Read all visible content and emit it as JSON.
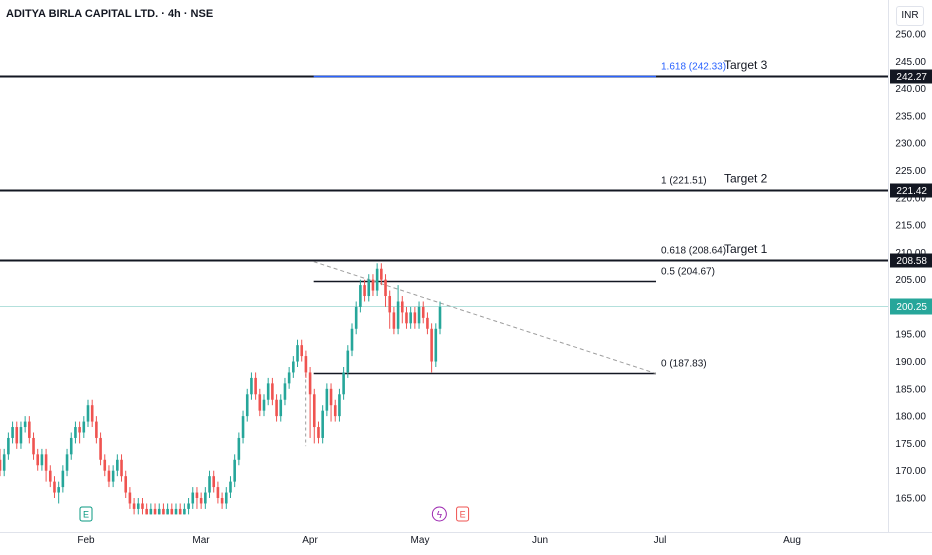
{
  "header": {
    "symbol_title": "ADITYA BIRLA CAPITAL LTD. · 4h · NSE",
    "currency": "INR"
  },
  "colors": {
    "up": "#26a69a",
    "down": "#ef5350",
    "level_line": "#131722",
    "fib_ext": "#2962ff",
    "current_price": "#26a69a",
    "trend_line": "#9e9e9e",
    "axis_text": "#131722"
  },
  "chart_data": {
    "type": "candlestick",
    "timeframe": "4h",
    "xlabels": [
      "Feb",
      "Mar",
      "Apr",
      "May",
      "Jun",
      "Jul",
      "Aug"
    ],
    "ylim": [
      162,
      253
    ],
    "yticks": [
      165,
      170,
      175,
      180,
      185,
      190,
      195,
      200,
      205,
      210,
      215,
      220,
      225,
      230,
      235,
      240,
      245,
      250
    ],
    "current_price": "200.25",
    "price_labels": [
      "242.27",
      "221.42",
      "208.58"
    ],
    "horizontal_levels": [
      242.27,
      221.42,
      208.58
    ],
    "fib_levels": [
      {
        "label": "1.618 (242.33)",
        "value": 242.33
      },
      {
        "label": "1 (221.51)",
        "value": 221.51
      },
      {
        "label": "0.618 (208.64)",
        "value": 208.64
      },
      {
        "label": "0.5 (204.67)",
        "value": 204.67
      },
      {
        "label": "0 (187.83)",
        "value": 187.83
      }
    ],
    "targets": [
      {
        "label": "Target 3",
        "value": 242.33
      },
      {
        "label": "Target 2",
        "value": 221.51
      },
      {
        "label": "Target 1",
        "value": 208.64
      }
    ],
    "trendline": {
      "start_price": 208.3,
      "end_price": 187.8,
      "start_date": "2024-04-02",
      "end_date": "2024-06-30"
    },
    "events": [
      {
        "type": "earnings",
        "icon": "E",
        "date": "2024-02-01"
      },
      {
        "type": "dividend",
        "icon": "ϟ",
        "date": "2024-05-06"
      },
      {
        "type": "earnings",
        "icon": "E",
        "date": "2024-05-12"
      }
    ],
    "candles": [
      [
        172,
        170,
        174,
        169
      ],
      [
        170,
        173,
        174,
        169
      ],
      [
        173,
        176,
        177,
        172
      ],
      [
        176,
        178,
        179,
        175
      ],
      [
        178,
        175,
        179,
        174
      ],
      [
        175,
        178,
        179,
        174
      ],
      [
        178,
        179,
        180,
        177
      ],
      [
        179,
        176,
        180,
        175
      ],
      [
        176,
        173,
        177,
        172
      ],
      [
        173,
        171,
        174,
        170
      ],
      [
        171,
        173,
        174,
        170
      ],
      [
        173,
        170,
        174,
        168
      ],
      [
        170,
        168,
        171,
        167
      ],
      [
        168,
        166,
        169,
        165
      ],
      [
        166,
        167,
        168,
        164
      ],
      [
        167,
        170,
        171,
        166
      ],
      [
        170,
        173,
        174,
        169
      ],
      [
        173,
        176,
        177,
        172
      ],
      [
        176,
        178,
        179,
        175
      ],
      [
        178,
        177,
        179,
        175
      ],
      [
        177,
        179,
        180,
        176
      ],
      [
        179,
        182,
        183,
        178
      ],
      [
        182,
        179,
        183,
        178
      ],
      [
        179,
        176,
        180,
        175
      ],
      [
        176,
        172,
        177,
        171
      ],
      [
        172,
        170,
        173,
        169
      ],
      [
        170,
        168,
        171,
        167
      ],
      [
        168,
        170,
        171,
        167
      ],
      [
        170,
        172,
        173,
        169
      ],
      [
        172,
        169,
        173,
        168
      ],
      [
        169,
        166,
        170,
        165
      ],
      [
        166,
        164,
        167,
        163
      ],
      [
        164,
        163,
        165,
        162
      ],
      [
        163,
        164,
        165,
        162
      ],
      [
        164,
        163,
        165,
        162
      ],
      [
        163,
        162,
        164,
        162
      ],
      [
        162,
        163,
        164,
        162
      ],
      [
        163,
        162,
        164,
        162
      ],
      [
        162,
        163,
        164,
        162
      ],
      [
        163,
        162,
        164,
        162
      ],
      [
        162,
        163,
        164,
        162
      ],
      [
        163,
        162,
        164,
        162
      ],
      [
        162,
        163,
        164,
        162
      ],
      [
        163,
        162,
        164,
        162
      ],
      [
        162,
        163,
        164,
        162
      ],
      [
        163,
        164,
        165,
        162
      ],
      [
        164,
        166,
        167,
        163
      ],
      [
        166,
        165,
        167,
        163
      ],
      [
        165,
        164,
        166,
        163
      ],
      [
        164,
        166,
        167,
        163
      ],
      [
        166,
        169,
        170,
        165
      ],
      [
        169,
        167,
        170,
        166
      ],
      [
        167,
        165,
        168,
        164
      ],
      [
        165,
        164,
        166,
        163
      ],
      [
        164,
        166,
        167,
        163
      ],
      [
        166,
        168,
        169,
        165
      ],
      [
        168,
        172,
        173,
        167
      ],
      [
        172,
        176,
        177,
        171
      ],
      [
        176,
        180,
        181,
        175
      ],
      [
        180,
        184,
        185,
        179
      ],
      [
        184,
        187,
        188,
        183
      ],
      [
        187,
        184,
        188,
        183
      ],
      [
        184,
        181,
        185,
        180
      ],
      [
        181,
        183,
        184,
        180
      ],
      [
        183,
        186,
        187,
        182
      ],
      [
        186,
        183,
        187,
        182
      ],
      [
        183,
        180,
        184,
        179
      ],
      [
        180,
        183,
        184,
        179
      ],
      [
        183,
        186,
        187,
        182
      ],
      [
        186,
        188,
        189,
        185
      ],
      [
        188,
        190,
        191,
        187
      ],
      [
        190,
        193,
        194,
        189
      ],
      [
        193,
        191,
        194,
        190
      ],
      [
        191,
        188,
        192,
        187
      ],
      [
        188,
        184,
        189,
        176
      ],
      [
        184,
        178,
        185,
        175
      ],
      [
        178,
        176,
        179,
        175
      ],
      [
        176,
        181,
        182,
        175
      ],
      [
        181,
        185,
        186,
        180
      ],
      [
        185,
        182,
        186,
        179
      ],
      [
        182,
        180,
        183,
        179
      ],
      [
        180,
        184,
        185,
        179
      ],
      [
        184,
        188,
        189,
        183
      ],
      [
        188,
        192,
        193,
        187
      ],
      [
        192,
        196,
        197,
        191
      ],
      [
        196,
        200,
        201,
        195
      ],
      [
        200,
        204,
        205,
        199
      ],
      [
        204,
        202,
        205,
        201
      ],
      [
        202,
        205,
        206,
        201
      ],
      [
        205,
        203,
        206,
        202
      ],
      [
        203,
        207,
        208,
        202
      ],
      [
        207,
        205,
        208,
        204
      ],
      [
        205,
        202,
        206,
        200
      ],
      [
        202,
        199,
        203,
        196
      ],
      [
        199,
        196,
        200,
        195
      ],
      [
        196,
        201,
        204,
        195
      ],
      [
        201,
        199,
        202,
        197
      ],
      [
        199,
        197,
        200,
        196
      ],
      [
        197,
        199,
        200,
        196
      ],
      [
        199,
        197,
        200,
        196
      ],
      [
        197,
        200,
        201,
        196
      ],
      [
        200,
        198,
        201,
        197
      ],
      [
        198,
        196,
        199,
        195
      ],
      [
        196,
        190,
        197,
        188
      ],
      [
        190,
        196,
        197,
        189
      ],
      [
        196,
        200,
        201,
        195
      ]
    ]
  }
}
